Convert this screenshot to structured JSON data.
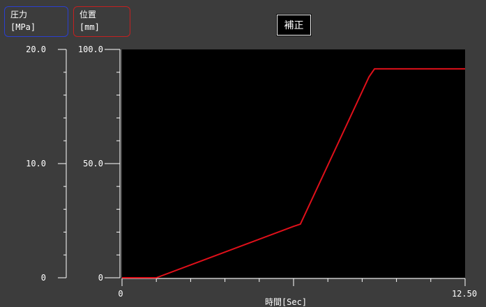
{
  "legend": {
    "pressure": {
      "label": "圧力",
      "unit": "[MPa]",
      "color": "#2a3fd0"
    },
    "position": {
      "label": "位置",
      "unit": "[mm]",
      "color": "#c42020"
    }
  },
  "button": {
    "label": "補正"
  },
  "chart_data": {
    "type": "line",
    "xlabel": "時間[Sec]",
    "xlim": [
      0,
      12.5
    ],
    "x_tick_labels": [
      "0",
      "12.50"
    ],
    "pressure_axis": {
      "ylim": [
        0,
        20
      ],
      "tick_labels": [
        "0",
        "10.0",
        "20.0"
      ]
    },
    "position_axis": {
      "ylim": [
        0,
        100
      ],
      "tick_labels": [
        "0",
        "50.0",
        "100.0"
      ]
    },
    "grid": false,
    "series": [
      {
        "axis": "position",
        "color": "#e0101a",
        "x": [
          0,
          1.25,
          6.25,
          6.5,
          9.0,
          9.2,
          12.5
        ],
        "y": [
          0,
          0,
          22.5,
          23.5,
          88.0,
          91.5,
          91.5
        ]
      }
    ]
  }
}
